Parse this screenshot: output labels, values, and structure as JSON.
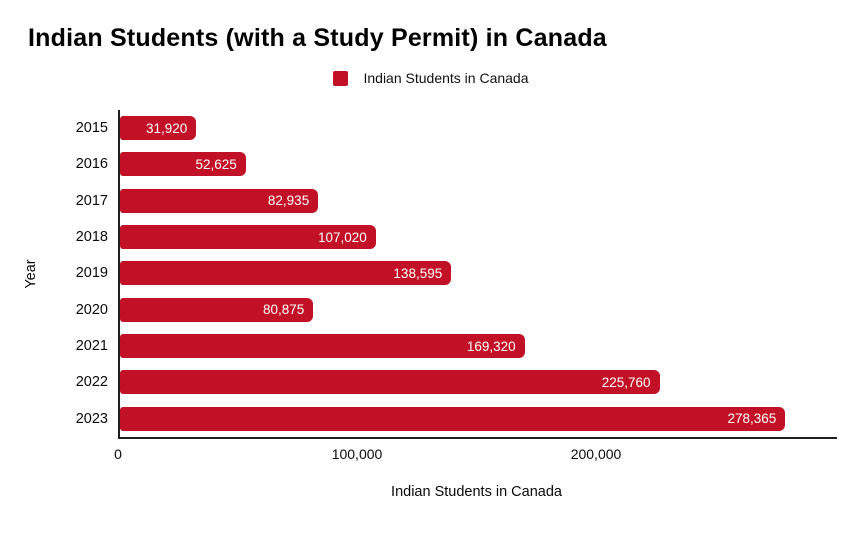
{
  "title": "Indian Students (with a Study Permit) in Canada",
  "legend": {
    "swatch": "red-square-swatch",
    "label": "Indian Students in Canada"
  },
  "colors": {
    "bar": "#C21126",
    "axis": "#1F1F1F",
    "bar_label_text": "#FFFFFF",
    "text": "#0A0A0A",
    "background": "#FFFFFF"
  },
  "chart_data": {
    "type": "bar",
    "orientation": "horizontal",
    "title": "Indian Students (with a Study Permit) in Canada",
    "xlabel": "Indian Students in Canada",
    "ylabel": "Year",
    "categories": [
      "2015",
      "2016",
      "2017",
      "2018",
      "2019",
      "2020",
      "2021",
      "2022",
      "2023"
    ],
    "values": [
      31920,
      52625,
      82935,
      107020,
      138595,
      80875,
      169320,
      225760,
      278365
    ],
    "value_labels": [
      "31,920",
      "52,625",
      "82,935",
      "107,020",
      "138,595",
      "80,875",
      "169,320",
      "225,760",
      "278,365"
    ],
    "xlim": [
      0,
      300000
    ],
    "x_ticks": [
      {
        "value": 0,
        "label": "0"
      },
      {
        "value": 100000,
        "label": "100,000"
      },
      {
        "value": 200000,
        "label": "200,000"
      }
    ],
    "grid": false,
    "legend_position": "top-center",
    "legend_entries": [
      "Indian Students in Canada"
    ]
  }
}
